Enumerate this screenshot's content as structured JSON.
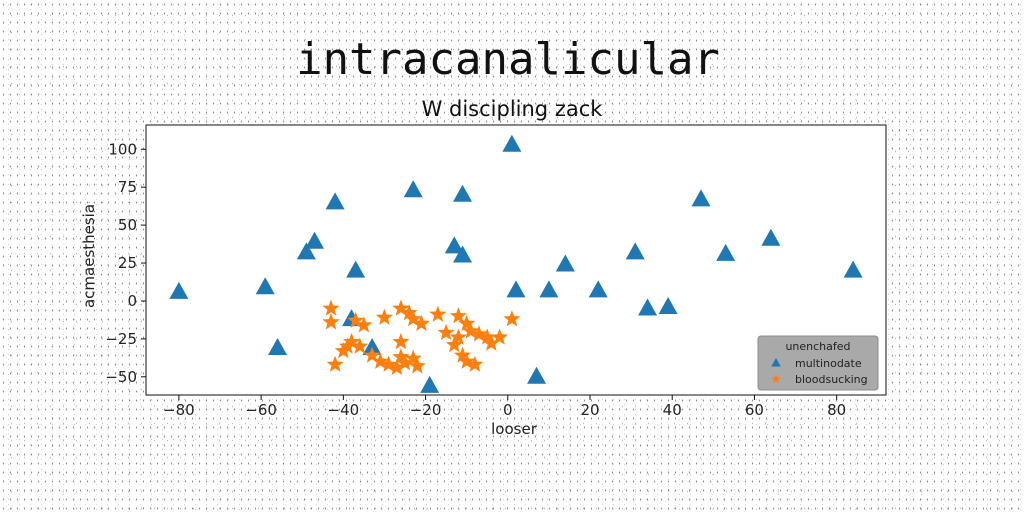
{
  "chart_data": {
    "type": "scatter",
    "title": "intracanalicular",
    "subtitle": "W discipling zack",
    "xlabel": "looser",
    "ylabel": "acmaesthesia",
    "xlim": [
      -88,
      92
    ],
    "ylim": [
      -62,
      116
    ],
    "xticks": [
      -80,
      -60,
      -40,
      -20,
      0,
      20,
      40,
      60,
      80
    ],
    "yticks": [
      -50,
      -25,
      0,
      25,
      50,
      75,
      100
    ],
    "grid": false,
    "legend": {
      "title": "unenchafed",
      "position": "bottom-right",
      "background": "#a9a9a9"
    },
    "series": [
      {
        "name": "multinodate",
        "marker": "triangle",
        "color": "#1f77b4",
        "points": [
          [
            1,
            103
          ],
          [
            -23,
            73
          ],
          [
            -11,
            70
          ],
          [
            -42,
            65
          ],
          [
            47,
            67
          ],
          [
            -47,
            39
          ],
          [
            -49,
            32
          ],
          [
            -13,
            36
          ],
          [
            -11,
            30
          ],
          [
            31,
            32
          ],
          [
            53,
            31
          ],
          [
            64,
            41
          ],
          [
            84,
            20
          ],
          [
            -37,
            20
          ],
          [
            -59,
            9
          ],
          [
            -80,
            6
          ],
          [
            2,
            7
          ],
          [
            10,
            7
          ],
          [
            14,
            24
          ],
          [
            22,
            7
          ],
          [
            34,
            -5
          ],
          [
            39,
            -4
          ],
          [
            -38,
            -12
          ],
          [
            -56,
            -31
          ],
          [
            -33,
            -31
          ],
          [
            7,
            -50
          ],
          [
            -19,
            -56
          ]
        ]
      },
      {
        "name": "bloodsucking",
        "marker": "star",
        "color": "#ff7f0e",
        "points": [
          [
            -43,
            -5
          ],
          [
            -43,
            -14
          ],
          [
            -37,
            -13
          ],
          [
            -35,
            -16
          ],
          [
            -30,
            -11
          ],
          [
            -26,
            -5
          ],
          [
            -24,
            -8
          ],
          [
            -23,
            -12
          ],
          [
            -21,
            -15
          ],
          [
            -17,
            -9
          ],
          [
            -12,
            -10
          ],
          [
            -10,
            -15
          ],
          [
            -9,
            -20
          ],
          [
            -12,
            -24
          ],
          [
            -7,
            -22
          ],
          [
            -5,
            -24
          ],
          [
            -4,
            -28
          ],
          [
            -2,
            -24
          ],
          [
            1,
            -12
          ],
          [
            -13,
            -29
          ],
          [
            -11,
            -36
          ],
          [
            -8,
            -42
          ],
          [
            -10,
            -40
          ],
          [
            -15,
            -21
          ],
          [
            -26,
            -27
          ],
          [
            -38,
            -27
          ],
          [
            -40,
            -33
          ],
          [
            -33,
            -36
          ],
          [
            -31,
            -40
          ],
          [
            -27,
            -44
          ],
          [
            -25,
            -41
          ],
          [
            -23,
            -38
          ],
          [
            -26,
            -37
          ],
          [
            -29,
            -42
          ],
          [
            -22,
            -43
          ],
          [
            -42,
            -42
          ],
          [
            -36,
            -30
          ],
          [
            -39,
            -30
          ]
        ]
      }
    ]
  }
}
